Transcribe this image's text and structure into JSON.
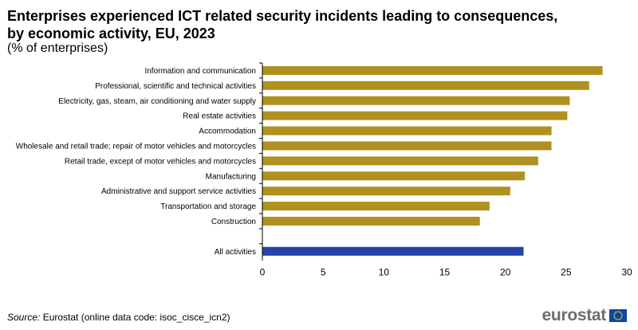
{
  "title": "Enterprises experienced ICT related security incidents leading to consequences, by economic activity, EU, 2023",
  "subtitle": "(% of enterprises)",
  "source": {
    "label": "Source:",
    "text": "Eurostat (online data code: isoc_cisce_icn2)"
  },
  "logo": {
    "text": "eurostat",
    "icon": "eu-flag-icon"
  },
  "colors": {
    "bar": "#b09120",
    "highlight": "#2644a7",
    "axis": "#000000"
  },
  "chart_data": {
    "type": "bar",
    "orientation": "horizontal",
    "categories": [
      "Information and communication",
      "Professional, scientific and technical activities",
      "Electricity, gas, steam, air conditioning and water supply",
      "Real estate activities",
      "Accommodation",
      "Wholesale and retail trade; repair of motor vehicles and motorcycles",
      "Retail trade, except of motor vehicles and motorcycles",
      "Manufacturing",
      "Administrative and support service activities",
      "Transportation and storage",
      "Construction",
      "",
      "All activities"
    ],
    "values": [
      28.0,
      26.9,
      25.3,
      25.1,
      23.8,
      23.8,
      22.7,
      21.6,
      20.4,
      18.7,
      17.9,
      null,
      21.5
    ],
    "highlight_category": "All activities",
    "xlim": [
      0,
      30
    ],
    "xticks": [
      0,
      5,
      10,
      15,
      20,
      25,
      30
    ],
    "grid": false,
    "legend": "none"
  }
}
